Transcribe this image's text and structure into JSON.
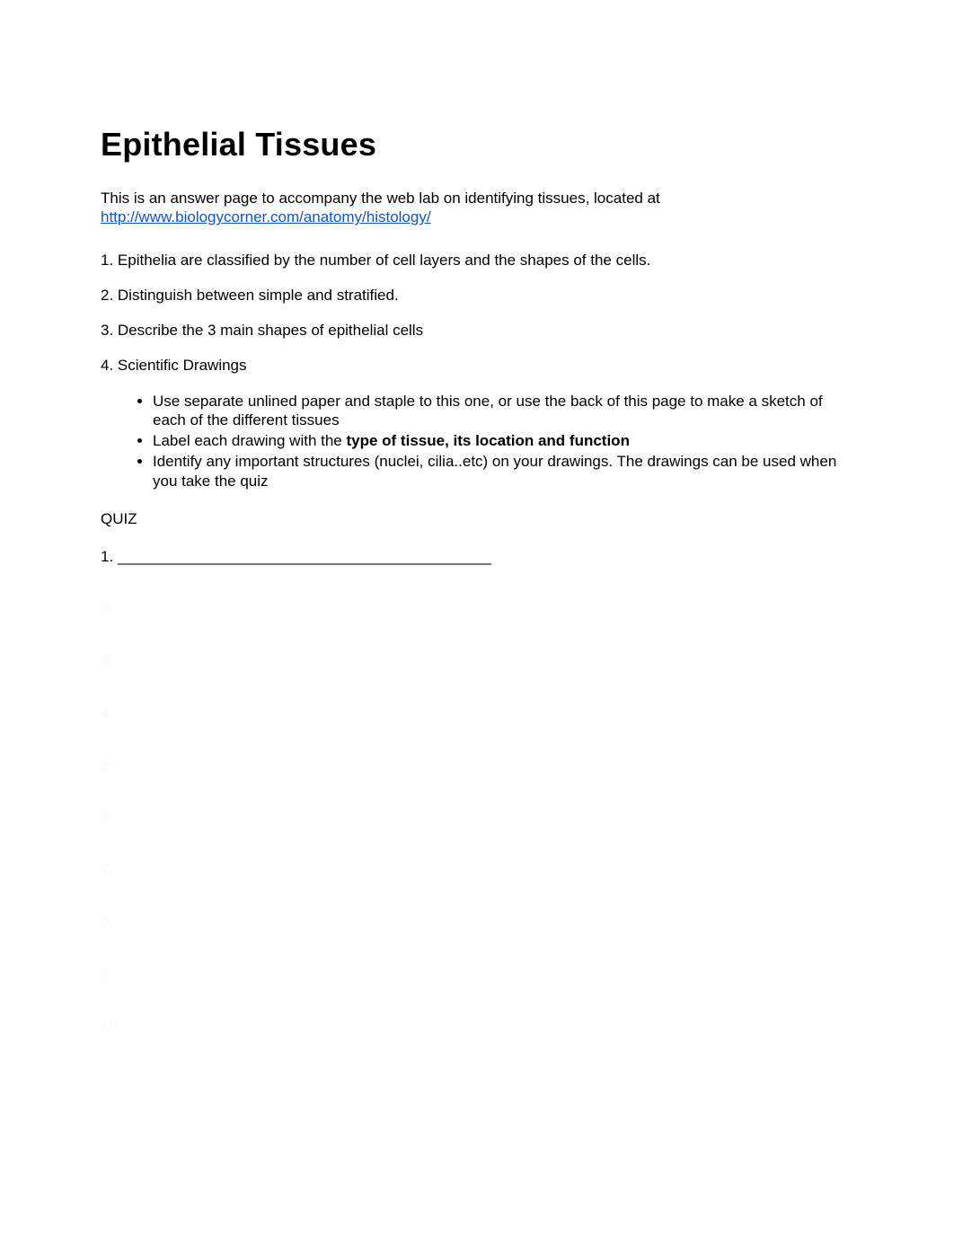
{
  "title": "Epithelial Tissues",
  "intro_text": "This is an answer page to accompany the web lab on identifying tissues, located at ",
  "intro_link": "http://www.biologycorner.com/anatomy/histology/",
  "questions": {
    "q1": "1. Epithelia are classified by the number of cell layers and the shapes of the cells.",
    "q2": "2. Distinguish between simple and stratified.",
    "q3": "3. Describe the 3 main shapes of epithelial cells",
    "q4": "4. Scientific Drawings"
  },
  "bullets": {
    "b1": "Use separate unlined paper and staple to this one, or use the back of this page to make a sketch of each of the different tissues",
    "b2_pre": "Label each drawing with the ",
    "b2_bold": "type of tissue, its location and function",
    "b3": "Identify any important structures (nuclei, cilia..etc) on your drawings. The drawings can be used when you take the quiz"
  },
  "quiz_header": "QUIZ",
  "quiz_blank": "____________________________________________",
  "quiz_lines": {
    "l1": "1.",
    "l2": "2.",
    "l3": "3.",
    "l4": "4.",
    "l5": "5.",
    "l6": "6.",
    "l7": "7.",
    "l8": "8.",
    "l9": "9.",
    "l10": "10."
  },
  "colors": {
    "text": "#000000",
    "link": "#1155cc",
    "background": "#ffffff"
  },
  "typography": {
    "title_fontsize": 36,
    "body_fontsize": 17,
    "font_family": "Arial"
  }
}
